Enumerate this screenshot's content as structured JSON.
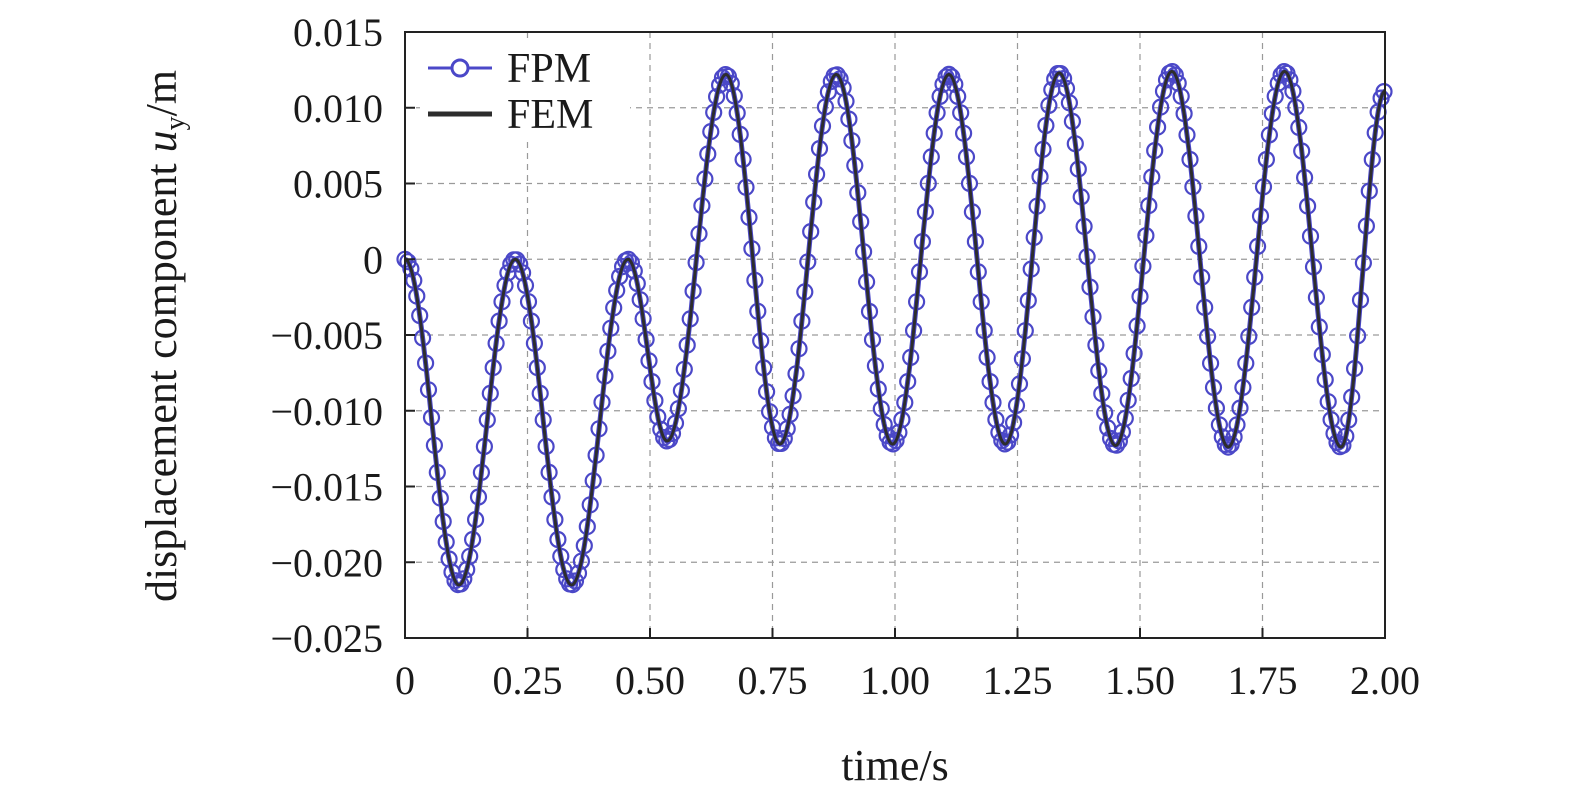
{
  "chart_data": {
    "type": "line",
    "title": "",
    "xlabel": "time/s",
    "ylabel": {
      "prefix": "displacement component ",
      "symbol": "u",
      "subscript": "y",
      "suffix": "/m"
    },
    "xlim": [
      0,
      2.0
    ],
    "ylim": [
      -0.025,
      0.015
    ],
    "x_ticks": [
      0,
      0.25,
      0.5,
      0.75,
      1.0,
      1.25,
      1.5,
      1.75,
      2.0
    ],
    "x_tick_labels": [
      "0",
      "0.25",
      "0.50",
      "0.75",
      "1.00",
      "1.25",
      "1.50",
      "1.75",
      "2.00"
    ],
    "y_ticks": [
      0.015,
      0.01,
      0.005,
      0,
      -0.005,
      -0.01,
      -0.015,
      -0.02,
      -0.025
    ],
    "y_tick_labels": [
      "0.015",
      "0.010",
      "0.005",
      "0",
      "−0.005",
      "−0.010",
      "−0.015",
      "−0.020",
      "−0.025"
    ],
    "grid": true,
    "legend_position": "top-left",
    "series": [
      {
        "name": "FPM",
        "style": "line-with-circle-markers",
        "color": "#4b48c8",
        "x": [
          0,
          0.11,
          0.225,
          0.34,
          0.455,
          0.535,
          0.655,
          0.765,
          0.88,
          0.995,
          1.11,
          1.225,
          1.335,
          1.45,
          1.565,
          1.68,
          1.795,
          1.91,
          2.0
        ],
        "y": [
          0,
          -0.0215,
          0,
          -0.0215,
          0,
          -0.012,
          0.0122,
          -0.0122,
          0.0122,
          -0.0122,
          0.0122,
          -0.0122,
          0.0123,
          -0.0123,
          0.0124,
          -0.0124,
          0.0124,
          -0.0124,
          0.0111
        ]
      },
      {
        "name": "FEM",
        "style": "solid-line",
        "color": "#2d2d2d",
        "x": [
          0,
          0.11,
          0.225,
          0.34,
          0.455,
          0.535,
          0.655,
          0.765,
          0.88,
          0.995,
          1.11,
          1.225,
          1.335,
          1.45,
          1.565,
          1.68,
          1.795,
          1.91,
          2.0
        ],
        "y": [
          0,
          -0.0215,
          0,
          -0.0215,
          0,
          -0.012,
          0.0122,
          -0.0122,
          0.0122,
          -0.0122,
          0.0122,
          -0.0122,
          0.0123,
          -0.0123,
          0.0124,
          -0.0124,
          0.0124,
          -0.0124,
          0.0111
        ]
      }
    ]
  }
}
